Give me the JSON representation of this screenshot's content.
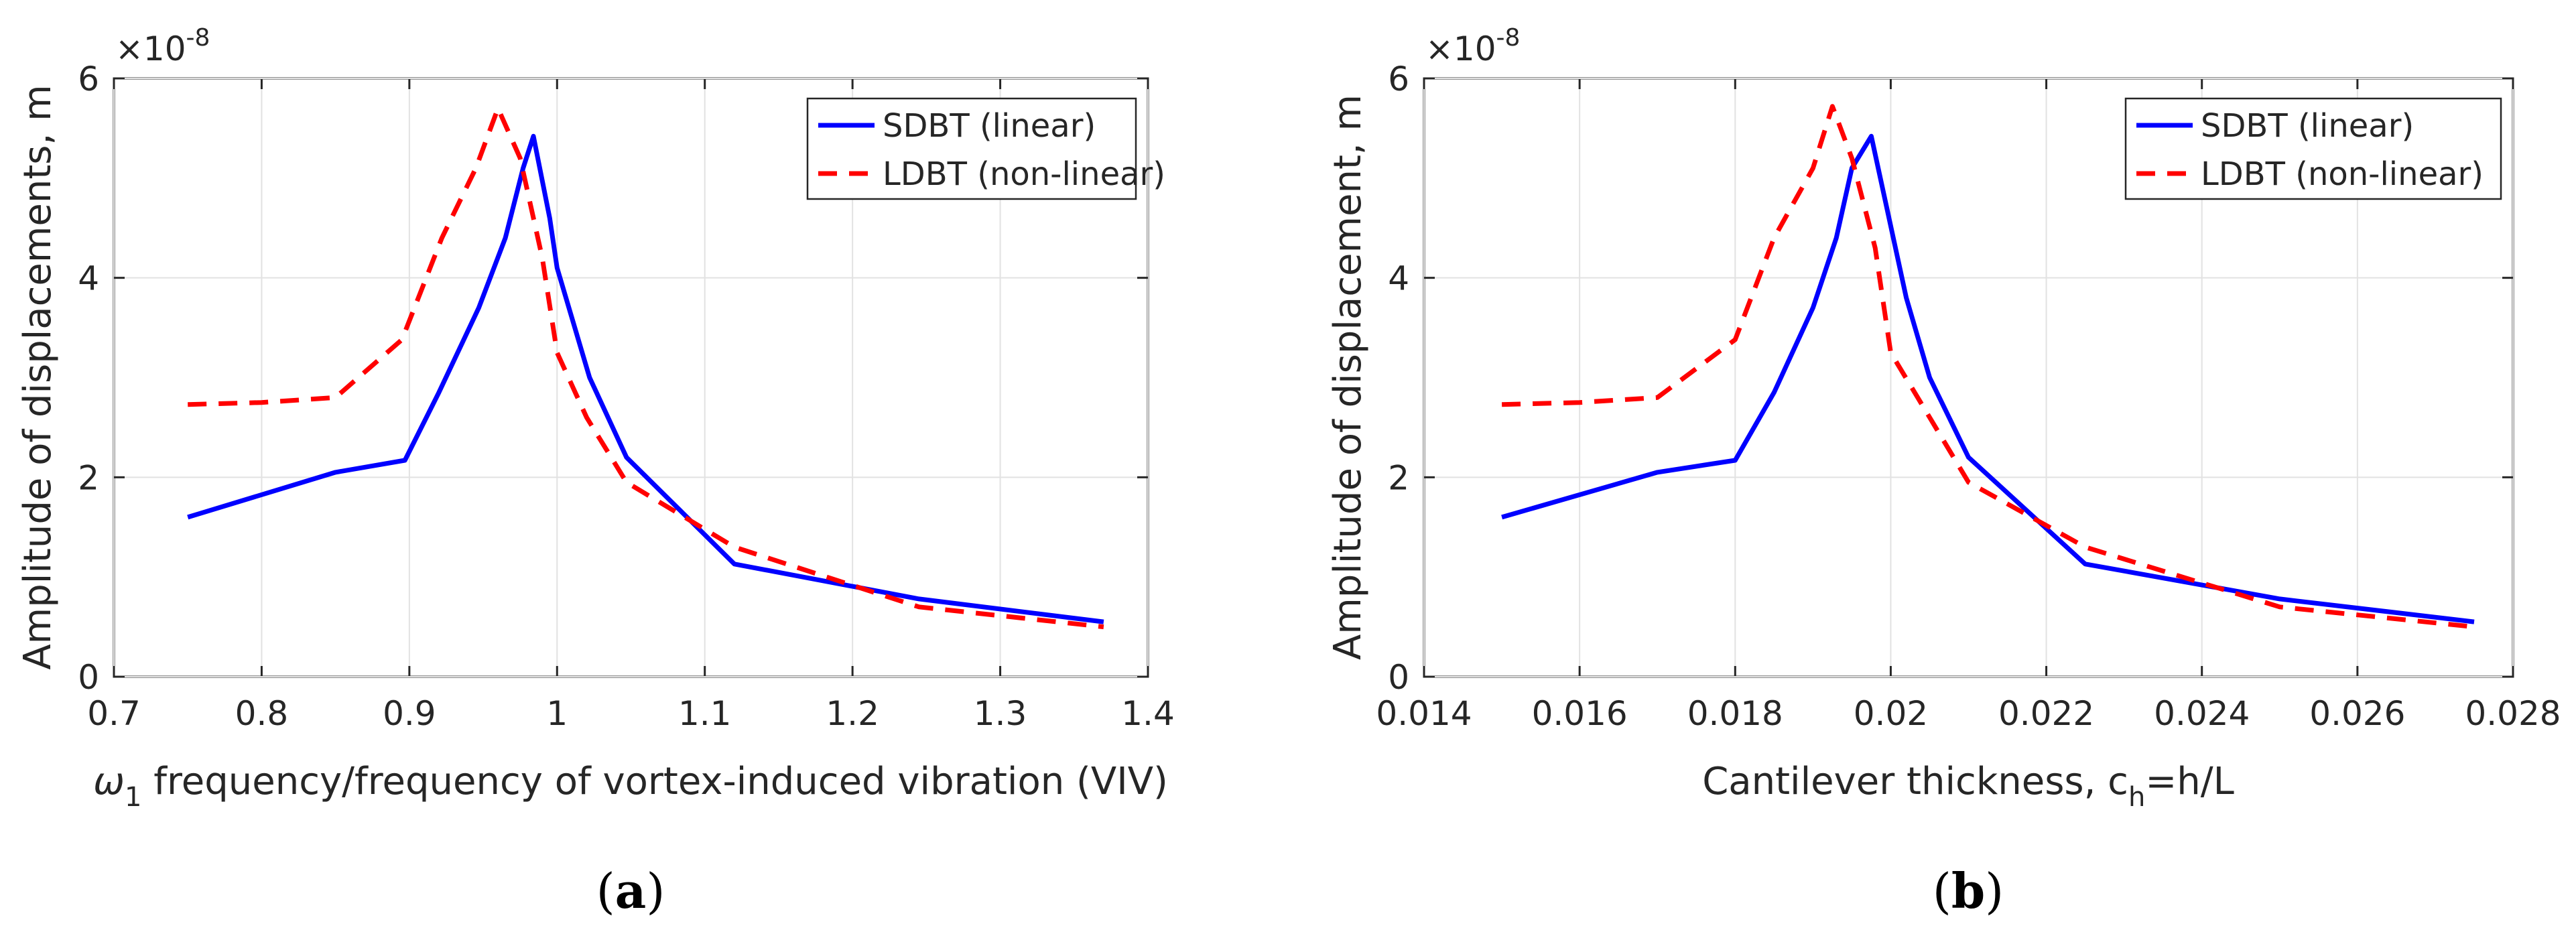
{
  "chart_data": [
    {
      "type": "line",
      "caption": "a",
      "xlabel_symbol": "ω",
      "xlabel_sub": "1",
      "xlabel_rest": " frequency/frequency of vortex-induced vibration (VIV)",
      "ylabel": "Amplitude of displacements, m",
      "y_multiplier_base": "×10",
      "y_multiplier_exp": "-8",
      "xlim": [
        0.7,
        1.4
      ],
      "ylim": [
        0,
        6
      ],
      "xticks": [
        "0.7",
        "0.8",
        "0.9",
        "1",
        "1.1",
        "1.2",
        "1.3",
        "1.4"
      ],
      "yticks": [
        "0",
        "2",
        "4",
        "6"
      ],
      "grid": true,
      "legend_position": "top-right",
      "series": [
        {
          "name": "SDBT (linear)",
          "color": "#0000ff",
          "style": "solid",
          "x": [
            0.75,
            0.85,
            0.897,
            0.92,
            0.947,
            0.965,
            0.977,
            0.984,
            0.995,
            1.0,
            1.022,
            1.047,
            1.12,
            1.245,
            1.37
          ],
          "y": [
            1.6,
            2.05,
            2.17,
            2.85,
            3.7,
            4.4,
            5.1,
            5.42,
            4.6,
            4.1,
            3.0,
            2.2,
            1.13,
            0.78,
            0.55
          ]
        },
        {
          "name": "LDBT (non-linear)",
          "color": "#ff0000",
          "style": "dashed",
          "x": [
            0.75,
            0.8,
            0.85,
            0.895,
            0.922,
            0.945,
            0.96,
            0.975,
            0.99,
            1.0,
            1.02,
            1.047,
            1.12,
            1.245,
            1.37
          ],
          "y": [
            2.73,
            2.75,
            2.8,
            3.38,
            4.4,
            5.1,
            5.7,
            5.2,
            4.2,
            3.25,
            2.6,
            1.95,
            1.3,
            0.7,
            0.5
          ]
        }
      ]
    },
    {
      "type": "line",
      "caption": "b",
      "xlabel_main": "Cantilever thickness, c",
      "xlabel_sub": "h",
      "xlabel_rest": "=h/L",
      "ylabel": "Amplitude of displacement, m",
      "y_multiplier_base": "×10",
      "y_multiplier_exp": "-8",
      "xlim": [
        0.014,
        0.028
      ],
      "ylim": [
        0,
        6
      ],
      "xticks": [
        "0.014",
        "0.016",
        "0.018",
        "0.02",
        "0.022",
        "0.024",
        "0.026",
        "0.028"
      ],
      "yticks": [
        "0",
        "2",
        "4",
        "6"
      ],
      "grid": true,
      "legend_position": "top-right",
      "series": [
        {
          "name": "SDBT (linear)",
          "color": "#0000ff",
          "style": "solid",
          "x": [
            0.015,
            0.017,
            0.018,
            0.0185,
            0.019,
            0.0193,
            0.0195,
            0.01975,
            0.0202,
            0.0205,
            0.021,
            0.0225,
            0.025,
            0.0275
          ],
          "y": [
            1.6,
            2.05,
            2.17,
            2.85,
            3.7,
            4.4,
            5.1,
            5.42,
            3.8,
            3.0,
            2.2,
            1.13,
            0.78,
            0.55
          ]
        },
        {
          "name": "LDBT (non-linear)",
          "color": "#ff0000",
          "style": "dashed",
          "x": [
            0.015,
            0.016,
            0.017,
            0.018,
            0.0185,
            0.019,
            0.01925,
            0.0195,
            0.0198,
            0.02,
            0.0205,
            0.021,
            0.0225,
            0.025,
            0.0275
          ],
          "y": [
            2.73,
            2.75,
            2.8,
            3.38,
            4.4,
            5.1,
            5.72,
            5.2,
            4.3,
            3.25,
            2.6,
            1.95,
            1.3,
            0.7,
            0.5
          ]
        }
      ]
    }
  ]
}
